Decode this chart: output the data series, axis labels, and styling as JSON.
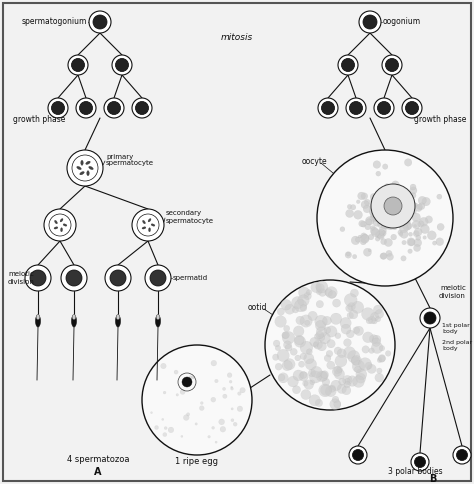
{
  "bg_color": "#f2f2f2",
  "border_color": "#555555",
  "label_mitosis": "mitosis",
  "label_growth_phase_left": "growth phase",
  "label_growth_phase_right": "growth phase",
  "label_meiotic_left": "meiotic\ndivision",
  "label_meiotic_right": "meiotic\ndivision",
  "label_primary": "primary\nspermatocyte",
  "label_secondary": "secondary\nspermatocyte",
  "label_spermatid": "spermatid",
  "label_spermatogonium": "spermatogonium",
  "label_oogonium": "oogonium",
  "label_oocyte": "oocyte",
  "label_ootid": "ootid",
  "label_4sperm": "4 spermatozoa",
  "label_A": "A",
  "label_B": "B",
  "label_1egg": "1 ripe egg",
  "label_3polar": "3 polar bodies",
  "label_1stpolar": "1st polar\nbody",
  "label_2ndpolar": "2nd polar\nbody",
  "figsize": [
    4.74,
    4.84
  ],
  "dpi": 100
}
